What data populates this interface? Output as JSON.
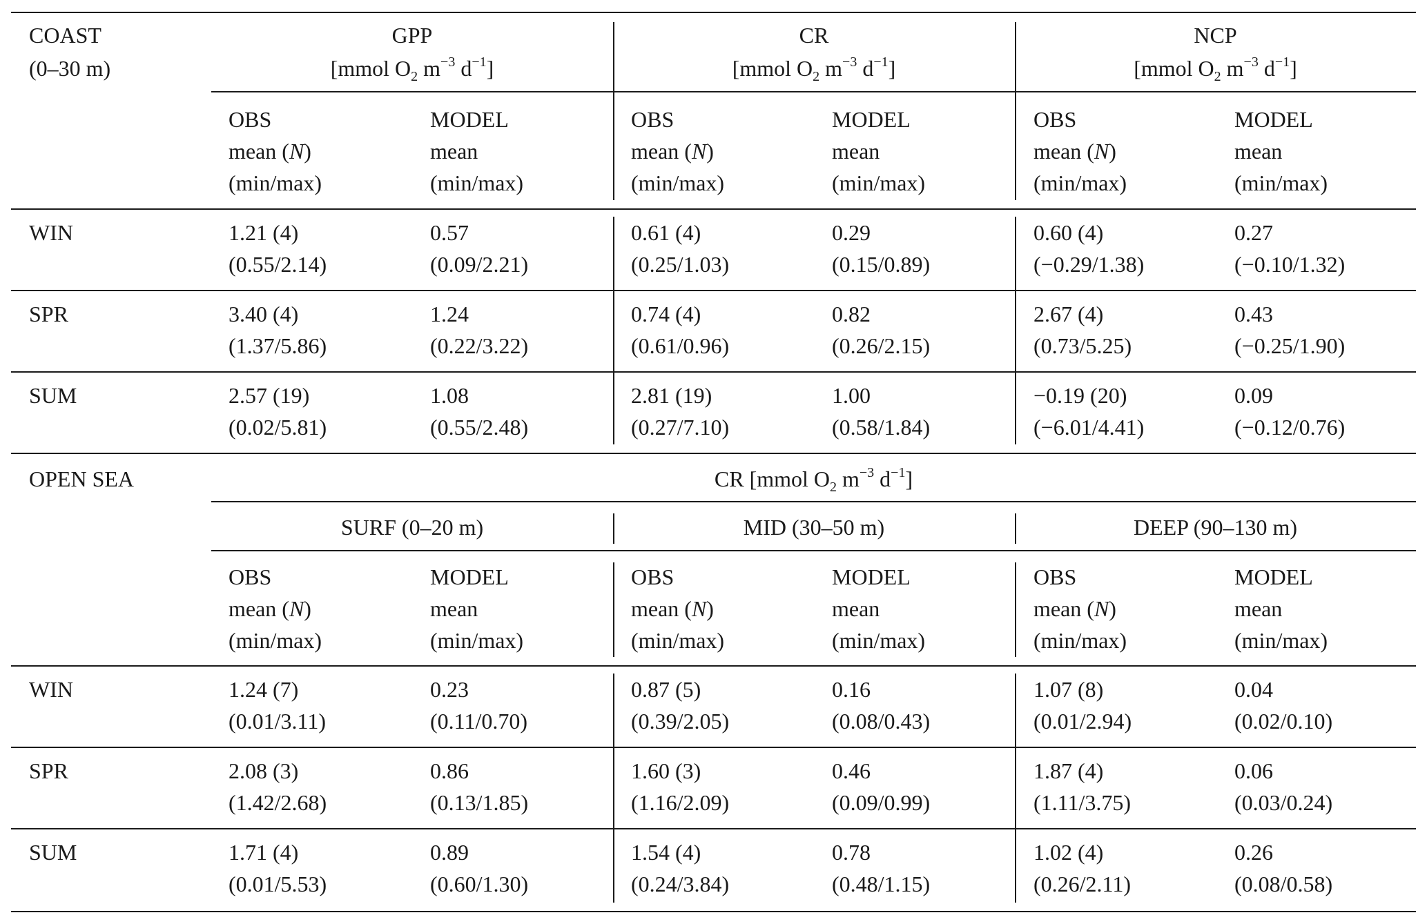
{
  "coast": {
    "region_line1": "COAST",
    "region_line2": "(0–30 m)",
    "groups": [
      {
        "name": "GPP",
        "unit_pre": "[mmol O",
        "unit_sub": "2",
        "unit_mid": " m",
        "unit_sup1": "−3",
        "unit_mid2": " d",
        "unit_sup2": "−1",
        "unit_post": "]"
      },
      {
        "name": "CR",
        "unit_pre": "[mmol O",
        "unit_sub": "2",
        "unit_mid": " m",
        "unit_sup1": "−3",
        "unit_mid2": " d",
        "unit_sup2": "−1",
        "unit_post": "]"
      },
      {
        "name": "NCP",
        "unit_pre": "[mmol O",
        "unit_sub": "2",
        "unit_mid": " m",
        "unit_sup1": "−3",
        "unit_mid2": " d",
        "unit_sup2": "−1",
        "unit_post": "]"
      }
    ],
    "rows": [
      {
        "season": "WIN",
        "cells": [
          [
            "1.21 (4)",
            "(0.55/2.14)"
          ],
          [
            "0.57",
            "(0.09/2.21)"
          ],
          [
            "0.61 (4)",
            "(0.25/1.03)"
          ],
          [
            "0.29",
            "(0.15/0.89)"
          ],
          [
            "0.60 (4)",
            "(−0.29/1.38)"
          ],
          [
            "0.27",
            "(−0.10/1.32)"
          ]
        ]
      },
      {
        "season": "SPR",
        "cells": [
          [
            "3.40 (4)",
            "(1.37/5.86)"
          ],
          [
            "1.24",
            "(0.22/3.22)"
          ],
          [
            "0.74 (4)",
            "(0.61/0.96)"
          ],
          [
            "0.82",
            "(0.26/2.15)"
          ],
          [
            "2.67 (4)",
            "(0.73/5.25)"
          ],
          [
            "0.43",
            "(−0.25/1.90)"
          ]
        ]
      },
      {
        "season": "SUM",
        "cells": [
          [
            "2.57 (19)",
            "(0.02/5.81)"
          ],
          [
            "1.08",
            "(0.55/2.48)"
          ],
          [
            "2.81 (19)",
            "(0.27/7.10)"
          ],
          [
            "1.00",
            "(0.58/1.84)"
          ],
          [
            "−0.19 (20)",
            "(−6.01/4.41)"
          ],
          [
            "0.09",
            "(−0.12/0.76)"
          ]
        ]
      }
    ]
  },
  "subheader": {
    "obs_l1": "OBS",
    "obs_l2_pre": "mean (",
    "obs_l2_n": "N",
    "obs_l2_post": ")",
    "obs_l3": "(min/max)",
    "model_l1": "MODEL",
    "model_l2": "mean",
    "model_l3": "(min/max)"
  },
  "open_sea": {
    "region": "OPEN SEA",
    "title_pre": "CR [mmol O",
    "title_sub": "2",
    "title_mid": " m",
    "title_sup1": "−3",
    "title_mid2": " d",
    "title_sup2": "−1",
    "title_post": "]",
    "layers": [
      "SURF (0–20 m)",
      "MID (30–50 m)",
      "DEEP (90–130 m)"
    ],
    "rows": [
      {
        "season": "WIN",
        "cells": [
          [
            "1.24 (7)",
            "(0.01/3.11)"
          ],
          [
            "0.23",
            "(0.11/0.70)"
          ],
          [
            "0.87 (5)",
            "(0.39/2.05)"
          ],
          [
            "0.16",
            "(0.08/0.43)"
          ],
          [
            "1.07 (8)",
            "(0.01/2.94)"
          ],
          [
            "0.04",
            "(0.02/0.10)"
          ]
        ]
      },
      {
        "season": "SPR",
        "cells": [
          [
            "2.08 (3)",
            "(1.42/2.68)"
          ],
          [
            "0.86",
            "(0.13/1.85)"
          ],
          [
            "1.60 (3)",
            "(1.16/2.09)"
          ],
          [
            "0.46",
            "(0.09/0.99)"
          ],
          [
            "1.87 (4)",
            "(1.11/3.75)"
          ],
          [
            "0.06",
            "(0.03/0.24)"
          ]
        ]
      },
      {
        "season": "SUM",
        "cells": [
          [
            "1.71 (4)",
            "(0.01/5.53)"
          ],
          [
            "0.89",
            "(0.60/1.30)"
          ],
          [
            "1.54 (4)",
            "(0.24/3.84)"
          ],
          [
            "0.78",
            "(0.48/1.15)"
          ],
          [
            "1.02 (4)",
            "(0.26/2.11)"
          ],
          [
            "0.26",
            "(0.08/0.58)"
          ]
        ]
      }
    ]
  }
}
